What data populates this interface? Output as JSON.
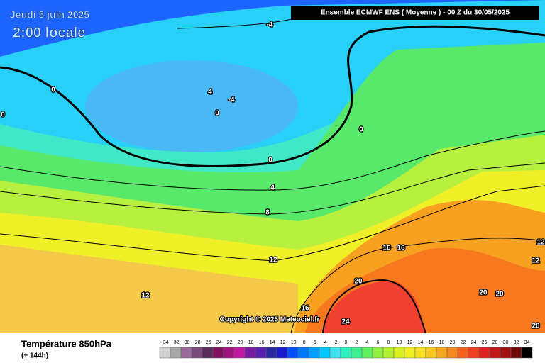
{
  "header": {
    "date": "Jeudi 5 juin 2025",
    "time": "2:00 locale",
    "model": "Ensemble ECMWF ENS  ( Moyenne )  -  00 Z du 30/05/2025",
    "copyright": "Copyright © 2025 Meteociel.fr"
  },
  "contour_labels": [
    -4,
    4,
    -4,
    0,
    0,
    0,
    0,
    0,
    4,
    8,
    12,
    12,
    16,
    16,
    16,
    20,
    20,
    20,
    24,
    20,
    12,
    12
  ],
  "legend": {
    "title": "Température 850hPa",
    "lead_time": "(+ 144h)",
    "scale": [
      -34,
      -32,
      -30,
      -28,
      -26,
      -24,
      -22,
      -20,
      -18,
      -16,
      -14,
      -12,
      -10,
      -8,
      -6,
      -4,
      -2,
      0,
      2,
      4,
      6,
      8,
      10,
      12,
      14,
      16,
      18,
      20,
      22,
      24,
      26,
      28,
      30,
      32,
      34
    ],
    "colors": [
      "#d0d0d0",
      "#a8a8a8",
      "#9a6a9a",
      "#7a4a7a",
      "#5a2a5a",
      "#801060",
      "#a01480",
      "#c018a0",
      "#7a1aa0",
      "#5a20b0",
      "#2828a0",
      "#1a1ad0",
      "#0050ff",
      "#0078ff",
      "#00a0ff",
      "#00c8ff",
      "#40e0f0",
      "#30f0c0",
      "#40f090",
      "#60f060",
      "#90f040",
      "#b0f030",
      "#d8f020",
      "#f0f020",
      "#f8e020",
      "#f8c820",
      "#f8a820",
      "#f88820",
      "#f86020",
      "#f04020",
      "#e02020",
      "#c01818",
      "#a01010",
      "#700808",
      "#000000"
    ]
  }
}
